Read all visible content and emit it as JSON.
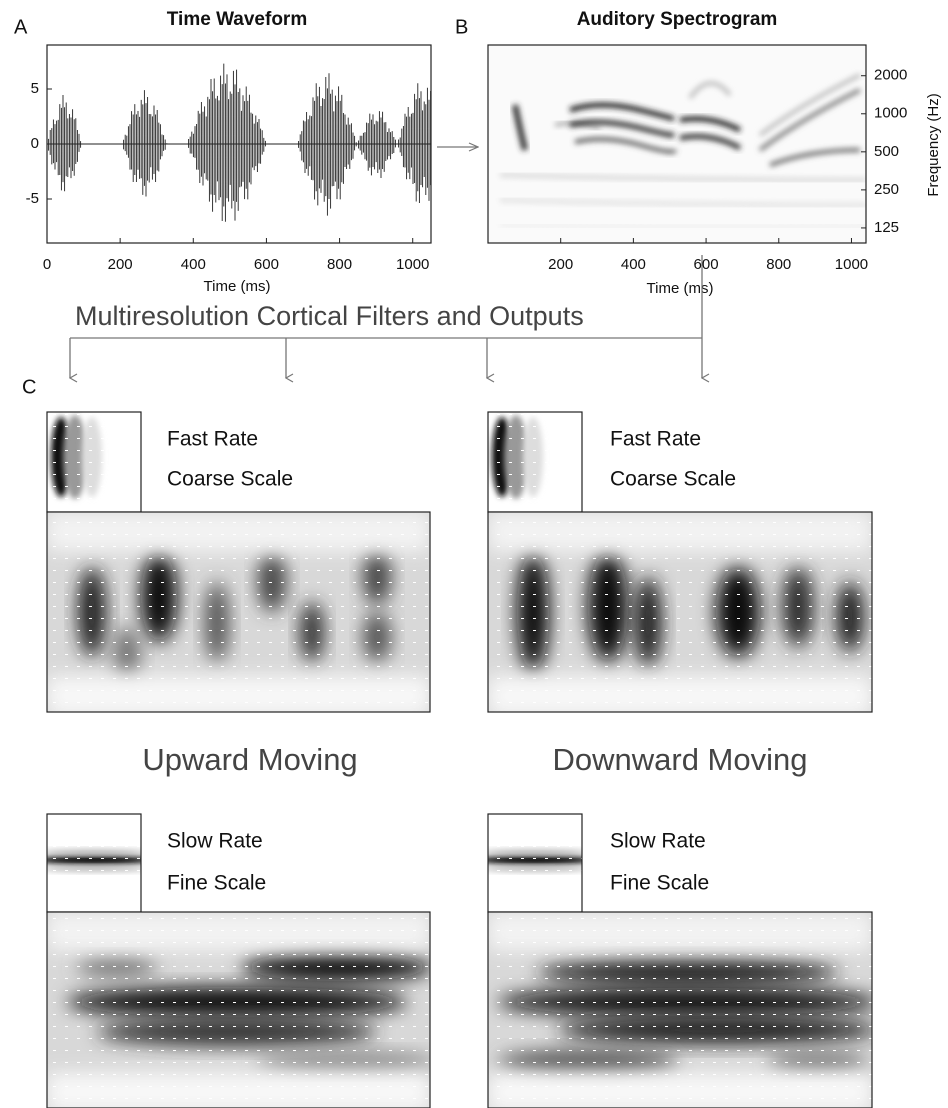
{
  "chart_data": [
    {
      "type": "line",
      "label": "A",
      "title": "Time Waveform",
      "x_label": "Time (ms)",
      "xlim": [
        0,
        1050
      ],
      "xticks": [
        0,
        200,
        400,
        600,
        800,
        1000
      ],
      "ylim": [
        -9,
        9
      ],
      "yticks": [
        -5,
        0,
        5
      ]
    },
    {
      "type": "heatmap",
      "label": "B",
      "title": "Auditory Spectrogram",
      "x_label": "Time (ms)",
      "y_label": "Frequency (Hz)",
      "xlim": [
        0,
        1040
      ],
      "xticks": [
        200,
        400,
        600,
        800,
        1000
      ],
      "ylim": [
        95,
        3500
      ],
      "yticks": [
        125,
        250,
        500,
        1000,
        2000
      ],
      "y_log": true,
      "y_axis_side": "right"
    }
  ],
  "panel_c": {
    "label": "C",
    "heading": "Multiresolution Cortical Filters and Outputs",
    "directions": [
      "Upward Moving",
      "Downward Moving"
    ],
    "filters": [
      {
        "rate": "Fast Rate",
        "scale": "Coarse Scale"
      },
      {
        "rate": "Slow Rate",
        "scale": "Fine Scale"
      }
    ]
  }
}
